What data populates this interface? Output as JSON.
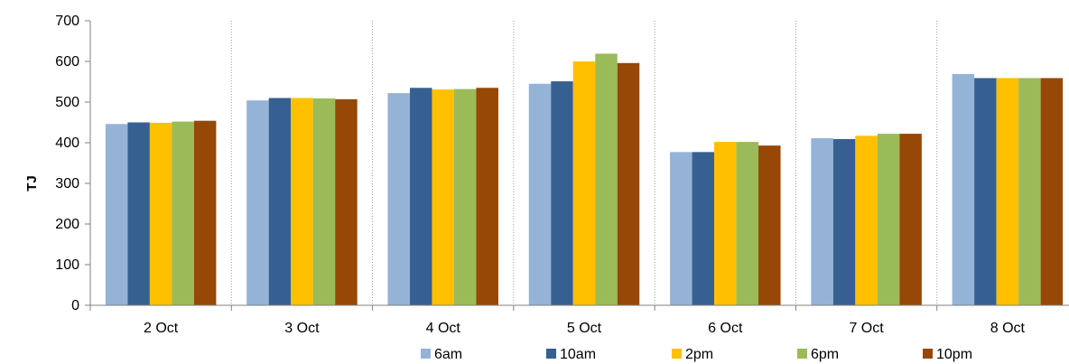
{
  "chart_data": {
    "type": "bar",
    "title": "",
    "xlabel": "",
    "ylabel": "TJ",
    "ylim": [
      0,
      700
    ],
    "yticks": [
      0,
      100,
      200,
      300,
      400,
      500,
      600,
      700
    ],
    "grid": "vertical dotted lines between categories",
    "legend_position": "bottom",
    "categories": [
      "2 Oct",
      "3 Oct",
      "4 Oct",
      "5 Oct",
      "6 Oct",
      "7 Oct",
      "8 Oct"
    ],
    "series": [
      {
        "name": "6am",
        "color": "#95b3d7",
        "values": [
          446,
          504,
          522,
          545,
          377,
          411,
          569
        ]
      },
      {
        "name": "10am",
        "color": "#376092",
        "values": [
          450,
          510,
          535,
          551,
          377,
          409,
          559
        ]
      },
      {
        "name": "2pm",
        "color": "#ffc000",
        "values": [
          449,
          510,
          531,
          600,
          402,
          417,
          559
        ]
      },
      {
        "name": "6pm",
        "color": "#9bbb59",
        "values": [
          452,
          509,
          532,
          619,
          402,
          422,
          559
        ]
      },
      {
        "name": "10pm",
        "color": "#974706",
        "values": [
          454,
          507,
          535,
          596,
          393,
          422,
          559
        ]
      }
    ]
  }
}
